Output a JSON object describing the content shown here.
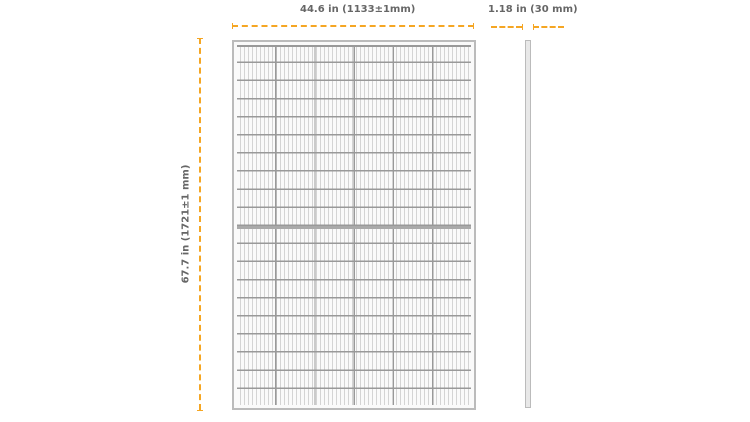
{
  "dimensions": {
    "width_label": "44.6 in (1133±1mm)",
    "thickness_label": "1.18 in (30 mm)",
    "height_label": "67.7 in (1721±1 mm)"
  },
  "panel": {
    "columns": 6,
    "rows": 20,
    "halves": 2
  },
  "colors": {
    "dimension_line": "#f5a623",
    "label_text": "#666666",
    "frame": "#bbbbbb"
  }
}
